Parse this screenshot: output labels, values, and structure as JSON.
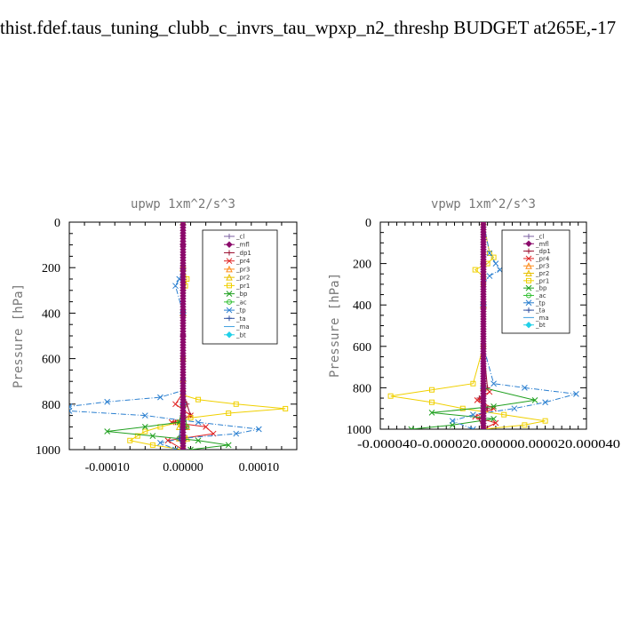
{
  "page": {
    "title": "thist.fdef.taus_tuning_clubb_c_invrs_tau_wpxp_n2_threshp  BUDGET at265E,-17"
  },
  "chart_data": [
    {
      "type": "line",
      "title": "upwp   1xm^2/s^3",
      "ylabel": "Pressure [hPa]",
      "xlim": [
        -0.00015,
        0.00015
      ],
      "ylim": [
        1000,
        0
      ],
      "xticks": [
        -0.0001,
        0,
        0.0001
      ],
      "xtick_labels": [
        "-0.00010",
        "0.00000",
        "0.00010"
      ],
      "yticks": [
        0,
        200,
        400,
        600,
        800,
        1000
      ],
      "ytick_labels": [
        "0",
        "200",
        "400",
        "600",
        "800",
        "1000"
      ],
      "legend": "top-right",
      "grid": false,
      "series": [
        {
          "name": "_cl",
          "color": "#7b5fa0",
          "marker": "+",
          "y": [
            0,
            100,
            200,
            300,
            400,
            500,
            600,
            700,
            800,
            850,
            900,
            950,
            1000
          ],
          "x": [
            0,
            0,
            0,
            0,
            0,
            0,
            0,
            0,
            0,
            0,
            0,
            0,
            0
          ]
        },
        {
          "name": "_mfl",
          "color": "#8b0a6b",
          "marker": "diamond",
          "y": [
            0,
            100,
            200,
            300,
            400,
            500,
            600,
            700,
            800,
            850,
            900,
            950,
            1000
          ],
          "x": [
            0,
            0,
            0,
            0,
            0,
            0,
            0,
            0,
            0,
            0,
            0,
            0,
            0
          ]
        },
        {
          "name": "_dp1",
          "color": "#9b1030",
          "marker": "+",
          "y": [
            0,
            200,
            400,
            600,
            750,
            800,
            850,
            880,
            900,
            950,
            1000
          ],
          "x": [
            0,
            0,
            0,
            0,
            0,
            5e-06,
            1e-05,
            -1e-05,
            5e-06,
            -5e-06,
            0
          ]
        },
        {
          "name": "_pr4",
          "color": "#e02020",
          "marker": "x",
          "y": [
            0,
            200,
            400,
            600,
            750,
            800,
            850,
            880,
            900,
            930,
            960,
            1000
          ],
          "x": [
            0,
            0,
            0,
            0,
            0,
            -1e-05,
            1e-05,
            -1.5e-05,
            3e-05,
            4e-05,
            -2e-05,
            0
          ]
        },
        {
          "name": "_pr3",
          "color": "#ff8c1a",
          "marker": "triangle",
          "y": [
            0,
            200,
            400,
            600,
            800,
            900,
            950,
            1000
          ],
          "x": [
            0,
            0,
            0,
            0,
            0,
            5e-06,
            -5e-06,
            0
          ]
        },
        {
          "name": "_pr2",
          "color": "#e8c000",
          "marker": "triangle",
          "y": [
            0,
            200,
            400,
            600,
            800,
            900,
            950,
            1000
          ],
          "x": [
            0,
            0,
            0,
            0,
            0,
            -5e-06,
            5e-06,
            0
          ]
        },
        {
          "name": "_pr1",
          "color": "#f0d000",
          "marker": "square",
          "y": [
            0,
            200,
            250,
            280,
            400,
            600,
            700,
            760,
            780,
            800,
            820,
            840,
            860,
            880,
            900,
            920,
            940,
            960,
            980,
            1000
          ],
          "x": [
            0,
            0,
            5e-06,
            3e-06,
            0,
            0,
            0,
            0,
            2e-05,
            7e-05,
            0.000135,
            6e-05,
            1e-05,
            -5e-06,
            -3e-05,
            -5e-05,
            -6e-05,
            -7e-05,
            -4e-05,
            0
          ]
        },
        {
          "name": "_bp",
          "color": "#20a020",
          "marker": "x",
          "y": [
            0,
            400,
            800,
            880,
            900,
            920,
            940,
            960,
            980,
            1000
          ],
          "x": [
            0,
            0,
            0,
            -5e-06,
            -5e-05,
            -0.0001,
            -4e-05,
            2e-05,
            6e-05,
            1e-05
          ]
        },
        {
          "name": "_ac",
          "color": "#30c030",
          "marker": "circle",
          "y": [
            0,
            400,
            800,
            900,
            950,
            1000
          ],
          "x": [
            0,
            0,
            0,
            5e-06,
            -5e-06,
            0
          ]
        },
        {
          "name": "_tp",
          "color": "#2a7fd0",
          "marker": "x",
          "y": [
            0,
            200,
            250,
            280,
            400,
            600,
            700,
            740,
            770,
            790,
            810,
            830,
            850,
            880,
            910,
            930,
            950,
            970,
            1000
          ],
          "x": [
            0,
            0,
            -5e-06,
            -1e-05,
            0,
            0,
            0,
            0,
            -3e-05,
            -0.0001,
            -0.00015,
            -0.00015,
            -5e-05,
            2e-05,
            0.0001,
            7e-05,
            0,
            -3e-05,
            -1e-05
          ]
        },
        {
          "name": "_ta",
          "color": "#3050a0",
          "marker": "+",
          "y": [
            0,
            400,
            800,
            950,
            1000
          ],
          "x": [
            0,
            0,
            0,
            -5e-06,
            0
          ]
        },
        {
          "name": "_ma",
          "color": "#40a0e0",
          "marker": "none",
          "y": [
            0,
            400,
            800,
            1000
          ],
          "x": [
            0,
            0,
            0,
            0
          ]
        },
        {
          "name": "_bt",
          "color": "#20d0e8",
          "marker": "diamond",
          "y": [
            0,
            400,
            800,
            1000
          ],
          "x": [
            0,
            0,
            0,
            0
          ]
        }
      ]
    },
    {
      "type": "line",
      "title": "vpwp   1xm^2/s^3",
      "ylabel": "Pressure [hPa]",
      "xlim": [
        -5e-05,
        5e-05
      ],
      "ylim": [
        1000,
        0
      ],
      "xticks": [
        -4e-05,
        -2e-05,
        0,
        2e-05,
        4e-05
      ],
      "xtick_labels": [
        "-0.0000400",
        "-0.0000200",
        "0.000000",
        "0.0000200",
        "0.0000400"
      ],
      "xtick_raw_text": "-0.000040-0.000020.000000.000020.000040",
      "yticks": [
        0,
        200,
        400,
        600,
        800,
        1000
      ],
      "ytick_labels": [
        "0",
        "200",
        "400",
        "600",
        "800",
        "1000"
      ],
      "legend": "top-right",
      "grid": false,
      "series": [
        {
          "name": "_cl",
          "color": "#7b5fa0",
          "marker": "+",
          "y": [
            0,
            200,
            400,
            600,
            800,
            1000
          ],
          "x": [
            0,
            0,
            0,
            0,
            0,
            0
          ]
        },
        {
          "name": "_mfl",
          "color": "#8b0a6b",
          "marker": "diamond",
          "y": [
            0,
            200,
            400,
            600,
            800,
            1000
          ],
          "x": [
            0,
            0,
            0,
            0,
            0,
            0
          ]
        },
        {
          "name": "_dp1",
          "color": "#9b1030",
          "marker": "+",
          "y": [
            0,
            200,
            400,
            600,
            800,
            850,
            900,
            950,
            1000
          ],
          "x": [
            0,
            0,
            0,
            0,
            2e-06,
            -2e-06,
            2e-06,
            -2e-06,
            0
          ]
        },
        {
          "name": "_pr4",
          "color": "#e02020",
          "marker": "x",
          "y": [
            0,
            200,
            400,
            600,
            780,
            820,
            860,
            900,
            940,
            970,
            1000
          ],
          "x": [
            0,
            0,
            0,
            0,
            0,
            3e-06,
            -3e-06,
            5e-06,
            -4e-06,
            6e-06,
            0
          ]
        },
        {
          "name": "_pr3",
          "color": "#ff8c1a",
          "marker": "triangle",
          "y": [
            0,
            400,
            800,
            1000
          ],
          "x": [
            0,
            0,
            0,
            0
          ]
        },
        {
          "name": "_pr2",
          "color": "#e8c000",
          "marker": "triangle",
          "y": [
            0,
            400,
            800,
            1000
          ],
          "x": [
            0,
            0,
            0,
            0
          ]
        },
        {
          "name": "_pr1",
          "color": "#f0d000",
          "marker": "square",
          "y": [
            0,
            150,
            170,
            200,
            230,
            260,
            300,
            400,
            600,
            780,
            810,
            840,
            870,
            900,
            930,
            960,
            980,
            1000
          ],
          "x": [
            0,
            3e-06,
            5e-06,
            2e-06,
            -4e-06,
            0,
            0,
            0,
            0,
            -5e-06,
            -2.5e-05,
            -4.5e-05,
            -2.5e-05,
            -1e-05,
            1e-05,
            3e-05,
            2e-05,
            0
          ]
        },
        {
          "name": "_bp",
          "color": "#20a020",
          "marker": "x",
          "y": [
            0,
            400,
            800,
            860,
            890,
            920,
            950,
            980,
            1000
          ],
          "x": [
            0,
            0,
            0,
            2.5e-05,
            5e-06,
            -2.5e-05,
            5e-06,
            -1.5e-05,
            -3.5e-05
          ]
        },
        {
          "name": "_ac",
          "color": "#30c030",
          "marker": "circle",
          "y": [
            0,
            400,
            800,
            1000
          ],
          "x": [
            0,
            0,
            0,
            0
          ]
        },
        {
          "name": "_tp",
          "color": "#2a7fd0",
          "marker": "x",
          "y": [
            0,
            150,
            200,
            230,
            260,
            300,
            400,
            600,
            780,
            800,
            830,
            870,
            900,
            930,
            960,
            1000
          ],
          "x": [
            0,
            3e-06,
            6e-06,
            8e-06,
            3e-06,
            0,
            0,
            0,
            5e-06,
            2e-05,
            4.5e-05,
            3e-05,
            1.5e-05,
            -5e-06,
            -1.5e-05,
            -5e-06
          ]
        },
        {
          "name": "_ta",
          "color": "#3050a0",
          "marker": "+",
          "y": [
            0,
            400,
            800,
            1000
          ],
          "x": [
            0,
            0,
            0,
            0
          ]
        },
        {
          "name": "_ma",
          "color": "#40a0e0",
          "marker": "none",
          "y": [
            0,
            400,
            800,
            1000
          ],
          "x": [
            0,
            0,
            0,
            0
          ]
        },
        {
          "name": "_bt",
          "color": "#20d0e8",
          "marker": "diamond",
          "y": [
            0,
            400,
            800,
            1000
          ],
          "x": [
            0,
            0,
            0,
            0
          ]
        }
      ]
    }
  ]
}
